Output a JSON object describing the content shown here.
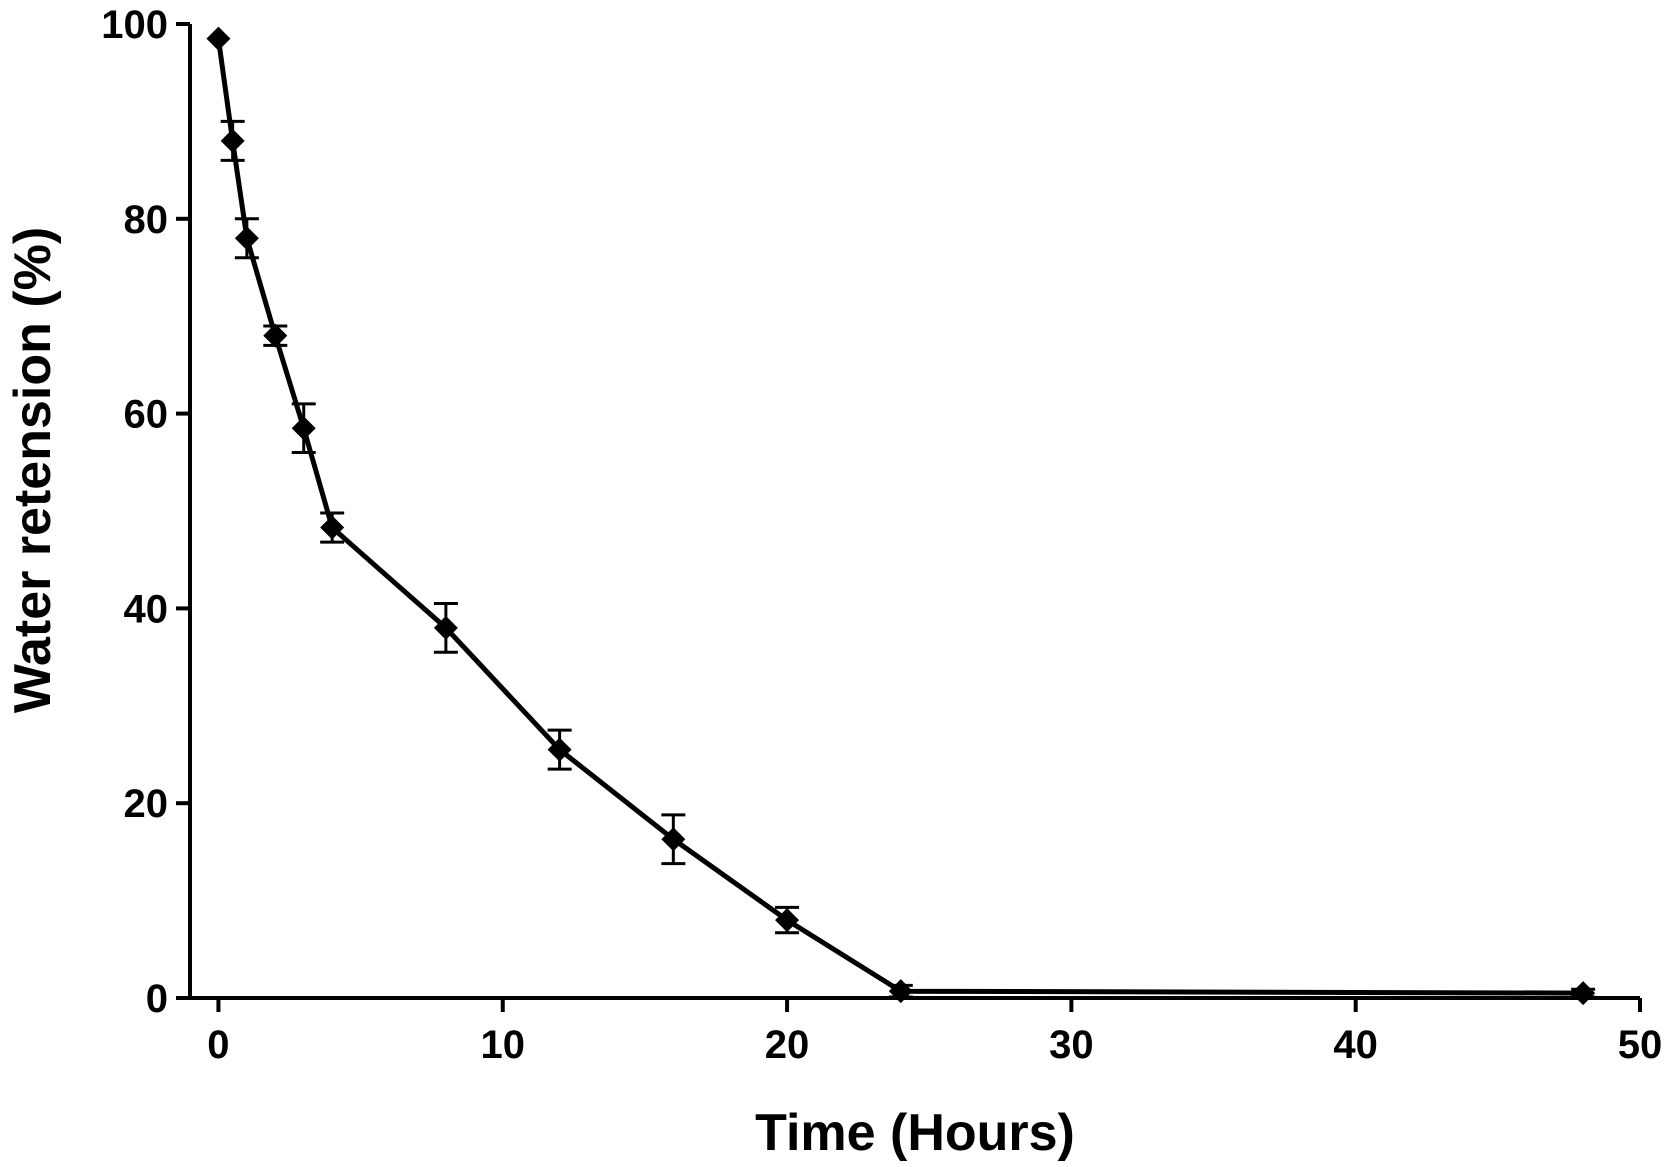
{
  "chart_data": {
    "type": "line",
    "xlabel": "Time (Hours)",
    "ylabel": "Water retension (%)",
    "xlim": [
      -1,
      50
    ],
    "ylim": [
      0,
      100
    ],
    "x_ticks": [
      0,
      10,
      20,
      30,
      40,
      50
    ],
    "y_ticks": [
      0,
      20,
      40,
      60,
      80,
      100
    ],
    "grid": false,
    "legend": "none",
    "series": [
      {
        "x": [
          0,
          0.5,
          1,
          2,
          3,
          4,
          8,
          12,
          16,
          20,
          24,
          48
        ],
        "y": [
          98.5,
          88,
          78,
          68,
          58.5,
          48.3,
          38,
          25.5,
          16.3,
          8,
          0.7,
          0.5
        ],
        "error": [
          0,
          2,
          2,
          1,
          2.5,
          1.5,
          2.5,
          2,
          2.5,
          1.3,
          0.6,
          0.4
        ],
        "color": "#000000",
        "marker": "diamond"
      }
    ]
  }
}
